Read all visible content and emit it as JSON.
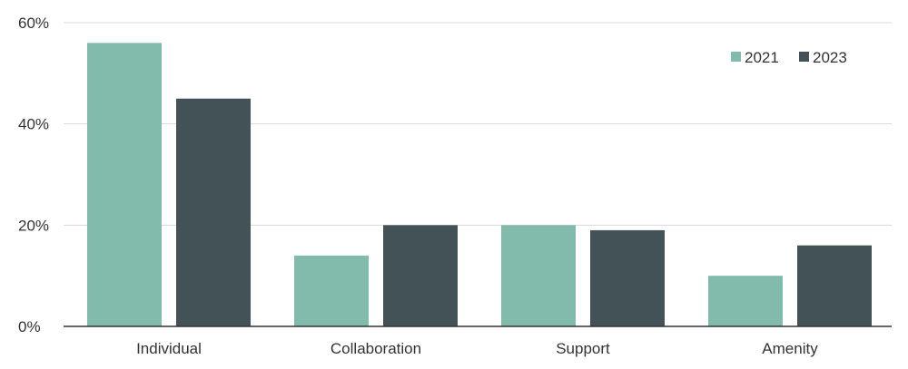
{
  "chart_data": {
    "type": "bar",
    "categories": [
      "Individual",
      "Collaboration",
      "Support",
      "Amenity"
    ],
    "series": [
      {
        "name": "2021",
        "values": [
          56,
          14,
          20,
          10
        ],
        "color": "#82bbac"
      },
      {
        "name": "2023",
        "values": [
          45,
          20,
          19,
          16
        ],
        "color": "#435256"
      }
    ],
    "title": "",
    "xlabel": "",
    "ylabel": "",
    "ylim": [
      0,
      60
    ],
    "yticks": [
      {
        "value": 0,
        "label": "0%"
      },
      {
        "value": 20,
        "label": "20%"
      },
      {
        "value": 40,
        "label": "40%"
      },
      {
        "value": 60,
        "label": "60%"
      }
    ],
    "grid": true,
    "legend_position": "top-right"
  }
}
